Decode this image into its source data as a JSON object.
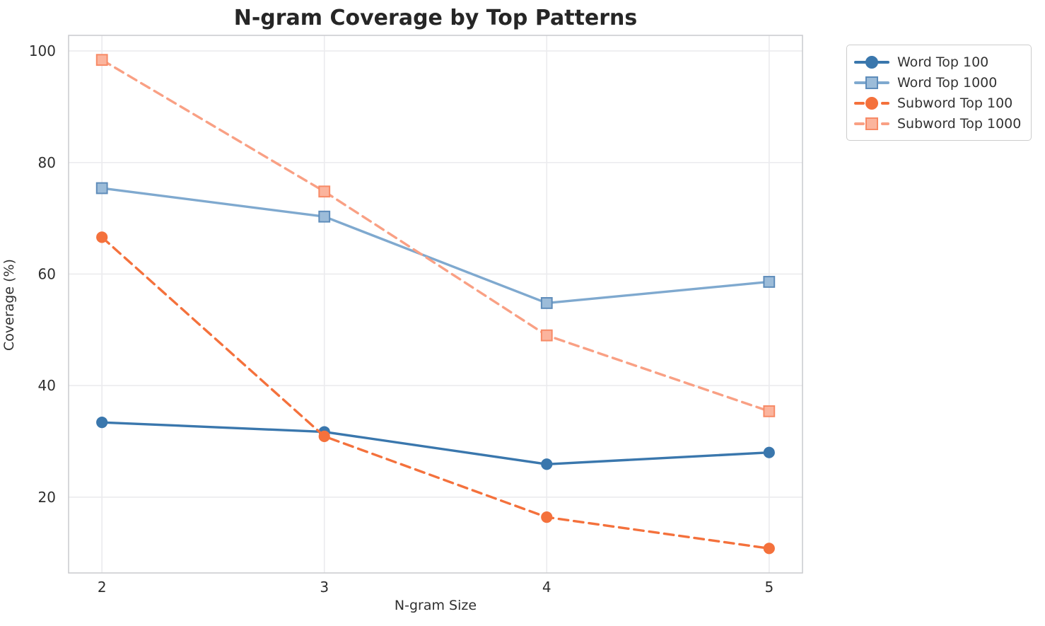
{
  "figure": {
    "background": "#ffffff",
    "text_color": "#303030",
    "title_color": "#262626",
    "grid_color": "#ebebee",
    "spine_color": "#c9cacd"
  },
  "chart_data": {
    "type": "line",
    "title": "N-gram Coverage by Top Patterns",
    "xlabel": "N-gram Size",
    "ylabel": "Coverage (%)",
    "x": [
      2,
      3,
      4,
      5
    ],
    "xticks": [
      "2",
      "3",
      "4",
      "5"
    ],
    "yticks": [
      "20",
      "40",
      "60",
      "80",
      "100"
    ],
    "ytick_values": [
      20,
      40,
      60,
      80,
      100
    ],
    "xlim": [
      1.85,
      5.15
    ],
    "ylim": [
      6.4,
      102.8
    ],
    "grid": true,
    "legend_position": "outside-top-right",
    "series": [
      {
        "name": "Word Top 100",
        "values": [
          33.4,
          31.7,
          25.9,
          28.0
        ],
        "color": "#3a77ad",
        "marker": "circle",
        "marker_face": "#3a77ad",
        "marker_edge": "#3a77ad",
        "linestyle": "solid"
      },
      {
        "name": "Word Top 1000",
        "values": [
          75.4,
          70.3,
          54.8,
          58.6
        ],
        "color": "#7fa9cf",
        "marker": "square",
        "marker_face": "#9cbcd9",
        "marker_edge": "#5e8cba",
        "linestyle": "solid"
      },
      {
        "name": "Subword Top 100",
        "values": [
          66.6,
          30.9,
          16.4,
          10.8
        ],
        "color": "#f4713c",
        "marker": "circle",
        "marker_face": "#f4713c",
        "marker_edge": "#f4713c",
        "linestyle": "dashed"
      },
      {
        "name": "Subword Top 1000",
        "values": [
          98.4,
          74.8,
          49.0,
          35.4
        ],
        "color": "#f9a084",
        "marker": "square",
        "marker_face": "#fbb49d",
        "marker_edge": "#f78a66",
        "linestyle": "dashed"
      }
    ]
  }
}
